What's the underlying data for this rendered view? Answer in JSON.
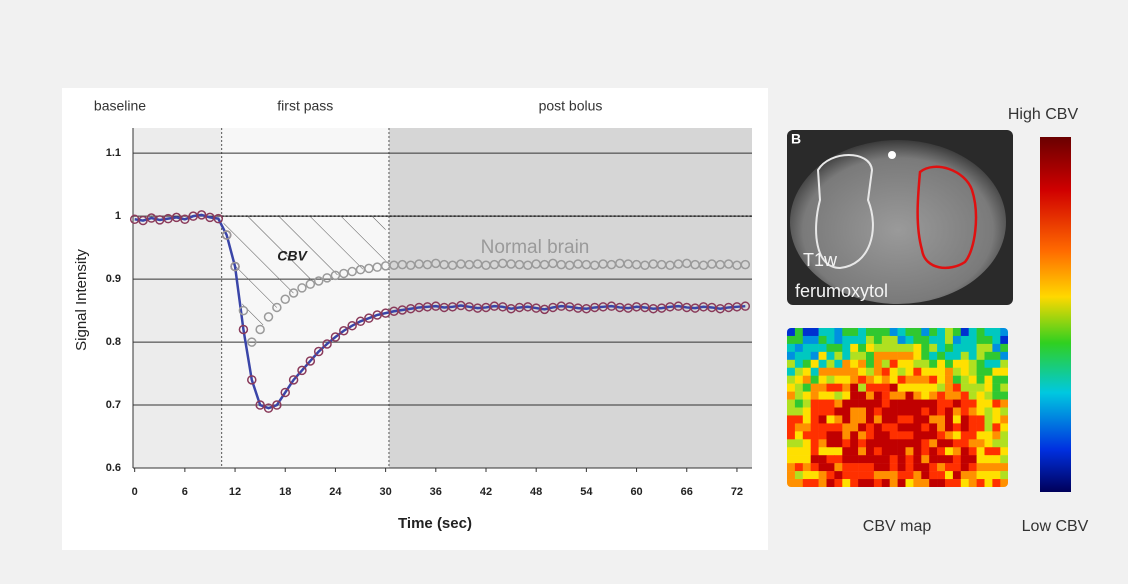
{
  "chart_data": {
    "type": "scatter",
    "y_label": "Signal Intensity",
    "x_label": "Time (sec)",
    "xlim": [
      -0.2,
      73.8
    ],
    "ylim": [
      0.6,
      1.14
    ],
    "xticks": [
      0,
      6,
      12,
      18,
      24,
      30,
      36,
      42,
      48,
      54,
      60,
      66,
      72
    ],
    "yticks": [
      0.6,
      0.7,
      0.8,
      0.9,
      1,
      1.1
    ],
    "grid": true,
    "reference_line": 1,
    "regions": [
      {
        "label": "baseline",
        "start": -0.2,
        "end": 10.4,
        "color": "#ececec"
      },
      {
        "label": "first pass",
        "start": 10.4,
        "end": 30.4,
        "color": "#f7f7f7"
      },
      {
        "label": "post bolus",
        "start": 30.4,
        "end": 73.8,
        "color": "#d6d6d6"
      }
    ],
    "area_label": "CBV",
    "x": [
      0,
      1,
      2,
      3,
      4,
      5,
      6,
      7,
      8,
      9,
      10,
      11,
      12,
      13,
      14,
      15,
      16,
      17,
      18,
      19,
      20,
      21,
      22,
      23,
      24,
      25,
      26,
      27,
      28,
      29,
      30,
      31,
      32,
      33,
      34,
      35,
      36,
      37,
      38,
      39,
      40,
      41,
      42,
      43,
      44,
      45,
      46,
      47,
      48,
      49,
      50,
      51,
      52,
      53,
      54,
      55,
      56,
      57,
      58,
      59,
      60,
      61,
      62,
      63,
      64,
      65,
      66,
      67,
      68,
      69,
      70,
      71,
      72,
      73
    ],
    "series": [
      {
        "color": "#8a3a5a",
        "line_color": "#3a45a8",
        "values": [
          0.995,
          0.993,
          0.997,
          0.994,
          0.996,
          0.998,
          0.995,
          1.0,
          1.002,
          0.998,
          0.996,
          0.97,
          0.92,
          0.82,
          0.74,
          0.7,
          0.695,
          0.7,
          0.72,
          0.74,
          0.755,
          0.77,
          0.785,
          0.797,
          0.808,
          0.818,
          0.826,
          0.833,
          0.838,
          0.843,
          0.846,
          0.849,
          0.851,
          0.853,
          0.855,
          0.856,
          0.857,
          0.855,
          0.856,
          0.858,
          0.856,
          0.854,
          0.855,
          0.857,
          0.856,
          0.853,
          0.855,
          0.856,
          0.854,
          0.852,
          0.855,
          0.857,
          0.856,
          0.854,
          0.853,
          0.855,
          0.856,
          0.857,
          0.855,
          0.854,
          0.856,
          0.855,
          0.853,
          0.854,
          0.856,
          0.857,
          0.855,
          0.854,
          0.856,
          0.855,
          0.853,
          0.855,
          0.856,
          0.857
        ]
      },
      {
        "name": "Normal brain",
        "color": "#9a9a9a",
        "values": [
          null,
          null,
          null,
          null,
          null,
          null,
          null,
          null,
          null,
          null,
          null,
          0.97,
          0.92,
          0.85,
          0.8,
          0.82,
          0.84,
          0.855,
          0.868,
          0.878,
          0.886,
          0.892,
          0.897,
          0.902,
          0.906,
          0.909,
          0.912,
          0.915,
          0.917,
          0.919,
          0.921,
          0.922,
          0.923,
          0.922,
          0.924,
          0.923,
          0.925,
          0.923,
          0.922,
          0.924,
          0.923,
          0.924,
          0.922,
          0.923,
          0.925,
          0.924,
          0.923,
          0.922,
          0.924,
          0.923,
          0.925,
          0.923,
          0.922,
          0.924,
          0.923,
          0.922,
          0.924,
          0.923,
          0.925,
          0.924,
          0.923,
          0.922,
          0.924,
          0.923,
          0.922,
          0.924,
          0.925,
          0.923,
          0.922,
          0.924,
          0.923,
          0.924,
          0.922,
          0.923
        ]
      }
    ]
  },
  "images": {
    "mri_letter": "B",
    "mri_label_1": "T1w",
    "mri_label_2": "ferumoxytol",
    "map_caption": "CBV map",
    "scale_high": "High CBV",
    "scale_low": "Low CBV"
  }
}
